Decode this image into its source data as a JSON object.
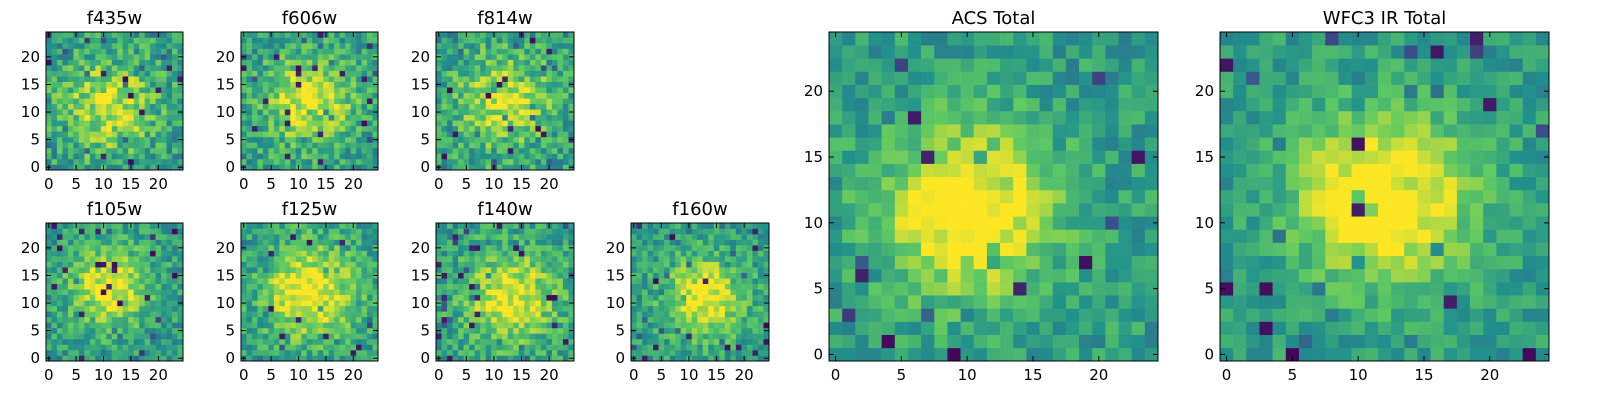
{
  "chart_data": {
    "type": "heatmap",
    "colormap": "viridis",
    "colormap_stops": [
      "#440154",
      "#3b528b",
      "#21918c",
      "#5ec962",
      "#fde725"
    ],
    "panels": [
      {
        "id": "f435w",
        "title": "f435w",
        "size": 25,
        "xlim": [
          -0.5,
          24.5
        ],
        "ylim": [
          -0.5,
          24.5
        ],
        "xticks": [
          0,
          5,
          10,
          15,
          20
        ],
        "yticks": [
          0,
          5,
          10,
          15,
          20
        ],
        "center": [
          11,
          11
        ],
        "peak": 0.78,
        "sigma": 6,
        "noise": 0.2,
        "seed": 11
      },
      {
        "id": "f606w",
        "title": "f606w",
        "size": 25,
        "xlim": [
          -0.5,
          24.5
        ],
        "ylim": [
          -0.5,
          24.5
        ],
        "xticks": [
          0,
          5,
          10,
          15,
          20
        ],
        "yticks": [
          0,
          5,
          10,
          15,
          20
        ],
        "center": [
          12,
          12
        ],
        "peak": 0.8,
        "sigma": 6,
        "noise": 0.18,
        "seed": 23
      },
      {
        "id": "f814w",
        "title": "f814w",
        "size": 25,
        "xlim": [
          -0.5,
          24.5
        ],
        "ylim": [
          -0.5,
          24.5
        ],
        "xticks": [
          0,
          5,
          10,
          15,
          20
        ],
        "yticks": [
          0,
          5,
          10,
          15,
          20
        ],
        "center": [
          12,
          12
        ],
        "peak": 0.78,
        "sigma": 6,
        "noise": 0.2,
        "seed": 37
      },
      {
        "id": "f105w",
        "title": "f105w",
        "size": 25,
        "xlim": [
          -0.5,
          24.5
        ],
        "ylim": [
          -0.5,
          24.5
        ],
        "xticks": [
          0,
          5,
          10,
          15,
          20
        ],
        "yticks": [
          0,
          5,
          10,
          15,
          20
        ],
        "center": [
          11,
          13
        ],
        "peak": 0.82,
        "sigma": 5,
        "noise": 0.16,
        "seed": 41
      },
      {
        "id": "f125w",
        "title": "f125w",
        "size": 25,
        "xlim": [
          -0.5,
          24.5
        ],
        "ylim": [
          -0.5,
          24.5
        ],
        "xticks": [
          0,
          5,
          10,
          15,
          20
        ],
        "yticks": [
          0,
          5,
          10,
          15,
          20
        ],
        "center": [
          12,
          12
        ],
        "peak": 0.84,
        "sigma": 6,
        "noise": 0.17,
        "seed": 53
      },
      {
        "id": "f140w",
        "title": "f140w",
        "size": 25,
        "xlim": [
          -0.5,
          24.5
        ],
        "ylim": [
          -0.5,
          24.5
        ],
        "xticks": [
          0,
          5,
          10,
          15,
          20
        ],
        "yticks": [
          0,
          5,
          10,
          15,
          20
        ],
        "center": [
          13,
          11
        ],
        "peak": 0.82,
        "sigma": 6,
        "noise": 0.17,
        "seed": 67
      },
      {
        "id": "f160w",
        "title": "f160w",
        "size": 25,
        "xlim": [
          -0.5,
          24.5
        ],
        "ylim": [
          -0.5,
          24.5
        ],
        "xticks": [
          0,
          5,
          10,
          15,
          20
        ],
        "yticks": [
          0,
          5,
          10,
          15,
          20
        ],
        "center": [
          13,
          11
        ],
        "peak": 0.84,
        "sigma": 5,
        "noise": 0.16,
        "seed": 79
      },
      {
        "id": "acs-total",
        "title": "ACS Total",
        "size": 25,
        "xlim": [
          -0.5,
          24.5
        ],
        "ylim": [
          -0.5,
          24.5
        ],
        "xticks": [
          0,
          5,
          10,
          15,
          20
        ],
        "yticks": [
          0,
          5,
          10,
          15,
          20
        ],
        "center": [
          10,
          11
        ],
        "peak": 0.9,
        "sigma": 4.5,
        "noise": 0.14,
        "seed": 97
      },
      {
        "id": "wfc3-ir-total",
        "title": "WFC3 IR Total",
        "size": 25,
        "xlim": [
          -0.5,
          24.5
        ],
        "ylim": [
          -0.5,
          24.5
        ],
        "xticks": [
          0,
          5,
          10,
          15,
          20
        ],
        "yticks": [
          0,
          5,
          10,
          15,
          20
        ],
        "center": [
          12,
          12
        ],
        "peak": 0.92,
        "sigma": 4.5,
        "noise": 0.12,
        "seed": 113
      }
    ]
  }
}
